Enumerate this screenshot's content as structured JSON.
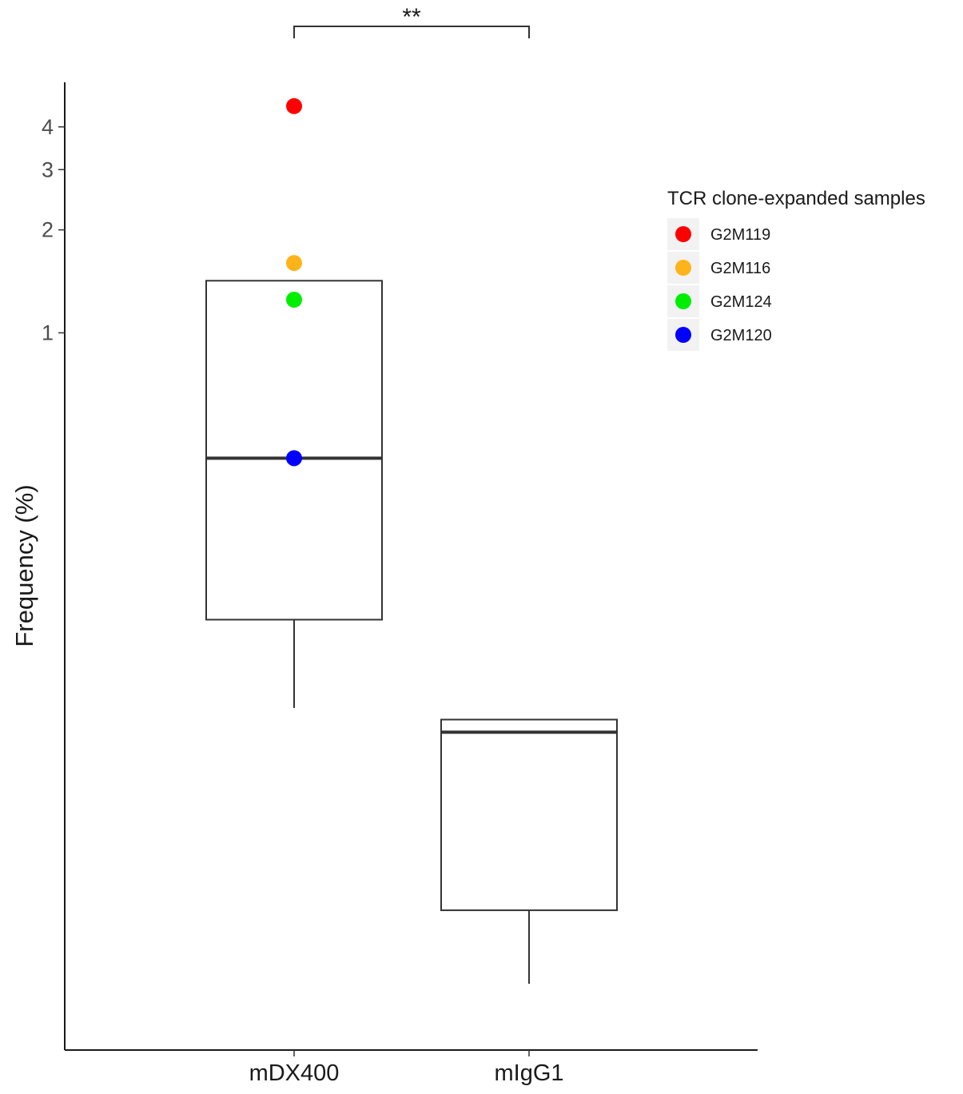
{
  "chart_data": {
    "type": "box",
    "title": "",
    "xlabel": "",
    "ylabel": "Frequency (%)",
    "y_scale": "log",
    "ylim": [
      0.008,
      5.4
    ],
    "y_ticks": [
      1,
      2,
      3,
      4
    ],
    "categories": [
      "mDX400",
      "mIgG1"
    ],
    "boxes": [
      {
        "category": "mDX400",
        "whisker_low": 0.08,
        "q1": 0.145,
        "median": 0.43,
        "q3": 1.42,
        "whisker_high": 1.42
      },
      {
        "category": "mIgG1",
        "whisker_low": 0.0125,
        "q1": 0.0205,
        "median": 0.068,
        "q3": 0.074,
        "whisker_high": 0.074
      }
    ],
    "points": [
      {
        "sample": "G2M119",
        "category": "mDX400",
        "y": 4.6,
        "color": "#ff0000"
      },
      {
        "sample": "G2M116",
        "category": "mDX400",
        "y": 1.6,
        "color": "#ffb31a"
      },
      {
        "sample": "G2M124",
        "category": "mDX400",
        "y": 1.25,
        "color": "#00ee00"
      },
      {
        "sample": "G2M120",
        "category": "mDX400",
        "y": 0.43,
        "color": "#0000ff"
      }
    ],
    "significance": {
      "label": "**",
      "from": "mDX400",
      "to": "mIgG1"
    },
    "legend": {
      "title": "TCR clone-expanded samples",
      "position": "right",
      "entries": [
        {
          "label": "G2M119",
          "color": "#ff0000"
        },
        {
          "label": "G2M116",
          "color": "#ffb31a"
        },
        {
          "label": "G2M124",
          "color": "#00ee00"
        },
        {
          "label": "G2M120",
          "color": "#0000ff"
        }
      ]
    },
    "grid": false
  }
}
